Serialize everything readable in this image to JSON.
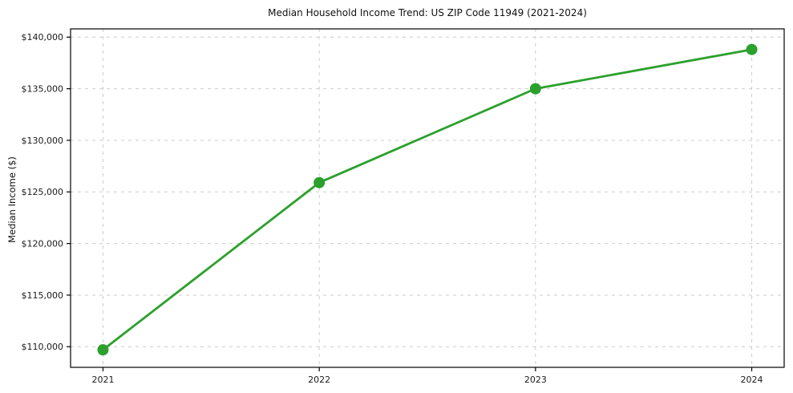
{
  "figure": {
    "background": "#ffffff"
  },
  "chart_data": {
    "type": "line",
    "title": "Median Household Income Trend: US ZIP Code 11949 (2021-2024)",
    "xlabel": "",
    "ylabel": "Median Income ($)",
    "x": [
      2021,
      2022,
      2023,
      2024
    ],
    "x_tick_labels": [
      "2021",
      "2022",
      "2023",
      "2024"
    ],
    "series": [
      {
        "name": "Median Household Income",
        "values": [
          109700,
          125900,
          135000,
          138800
        ],
        "color": "#2ca02c",
        "marker": "circle",
        "line_width": 2.8,
        "marker_radius": 7
      }
    ],
    "xlim": [
      2020.85,
      2024.15
    ],
    "ylim": [
      108000,
      140800
    ],
    "y_ticks": [
      110000,
      115000,
      120000,
      125000,
      130000,
      135000,
      140000
    ],
    "y_tick_labels": [
      "$110,000",
      "$115,000",
      "$120,000",
      "$125,000",
      "$130,000",
      "$135,000",
      "$140,000"
    ],
    "grid": true,
    "grid_style": "dashed",
    "grid_color": "#cccccc",
    "grid_dash": "4 5",
    "axis_color": "#000000",
    "text_color": "#1a1a1a",
    "legend_position": "none"
  }
}
